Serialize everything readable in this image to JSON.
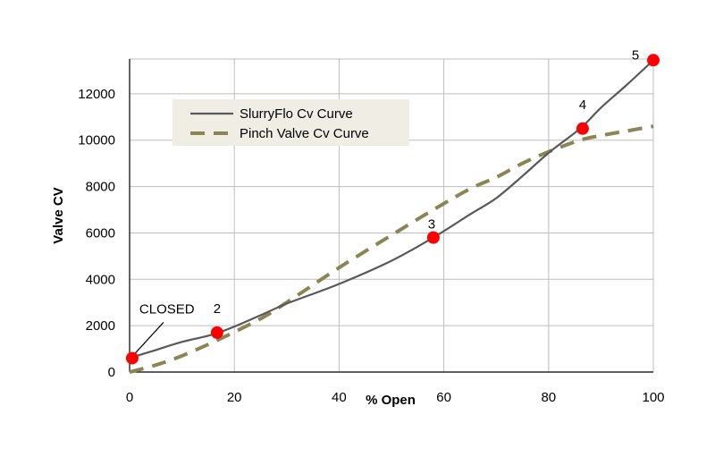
{
  "chart_data": {
    "type": "line",
    "title": "",
    "xlabel": "% Open",
    "ylabel": "Valve CV",
    "xlim": [
      0,
      100
    ],
    "ylim": [
      0,
      13500
    ],
    "x_ticks": [
      0,
      20,
      40,
      60,
      80,
      100
    ],
    "y_ticks": [
      0,
      2000,
      4000,
      6000,
      8000,
      10000,
      12000
    ],
    "grid": true,
    "legend": {
      "placement": "top-left",
      "entries": [
        "SlurryFlo Cv Curve",
        "Pinch Valve Cv Curve"
      ]
    },
    "series": [
      {
        "name": "SlurryFlo Cv Curve",
        "color": "#595959",
        "style": "solid",
        "x": [
          0,
          5,
          10,
          17,
          25,
          30,
          40,
          50,
          58,
          65,
          70,
          75,
          80,
          86,
          90,
          95,
          100
        ],
        "y": [
          600,
          950,
          1300,
          1700,
          2450,
          2950,
          3800,
          4800,
          5800,
          6800,
          7500,
          8450,
          9450,
          10500,
          11400,
          12400,
          13450
        ]
      },
      {
        "name": "Pinch Valve Cv Curve",
        "color": "#8b8453",
        "style": "dashed",
        "x": [
          0,
          5,
          10,
          17,
          25,
          30,
          40,
          50,
          58,
          65,
          70,
          75,
          80,
          86,
          90,
          95,
          100
        ],
        "y": [
          0,
          300,
          700,
          1400,
          2300,
          3000,
          4500,
          5900,
          7000,
          7900,
          8400,
          9000,
          9500,
          10000,
          10200,
          10400,
          10600
        ]
      }
    ],
    "points": [
      {
        "x": 0.5,
        "y": 600,
        "label": "CLOSED"
      },
      {
        "x": 16.7,
        "y": 1700,
        "label": "2"
      },
      {
        "x": 58,
        "y": 5800,
        "label": "3"
      },
      {
        "x": 86.5,
        "y": 10500,
        "label": "4"
      },
      {
        "x": 100,
        "y": 13450,
        "label": "5"
      }
    ],
    "point_color": "#ff0000",
    "legend_bg": "#efede4"
  }
}
